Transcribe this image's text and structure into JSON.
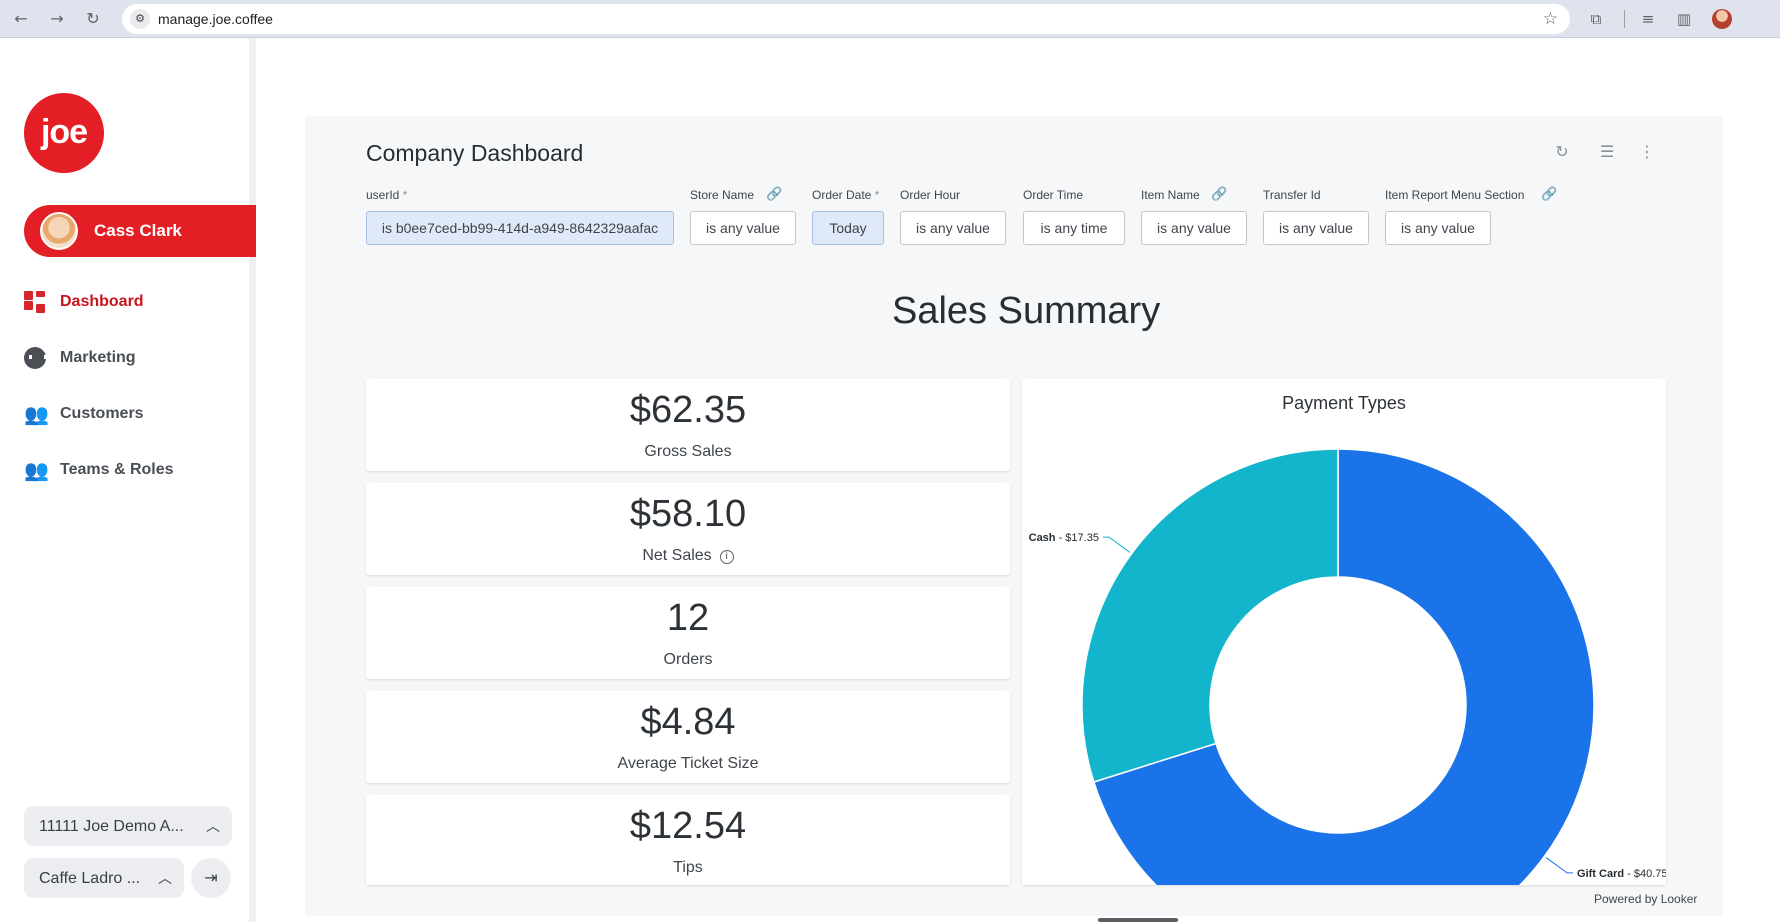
{
  "browser": {
    "url": "manage.joe.coffee",
    "back_glyph": "←",
    "forward_glyph": "→",
    "reload_glyph": "↻",
    "star_glyph": "☆"
  },
  "sidebar": {
    "logo_text": "joe",
    "user_name": "Cass Clark",
    "items": [
      {
        "label": "Dashboard",
        "icon": "dashboard-grid-icon",
        "active": true
      },
      {
        "label": "Marketing",
        "icon": "marketing-icon",
        "active": false
      },
      {
        "label": "Customers",
        "icon": "customers-icon",
        "active": false
      },
      {
        "label": "Teams & Roles",
        "icon": "teams-icon",
        "active": false
      }
    ],
    "company_select": "11111 Joe Demo A...",
    "store_select": "Caffe Ladro ..."
  },
  "dashboard": {
    "title": "Company Dashboard",
    "filters": [
      {
        "label": "userId",
        "required": "*",
        "value": "is b0ee7ced-bb99-414d-a949-8642329aafac",
        "highlight": true,
        "link": false
      },
      {
        "label": "Store Name",
        "required": "",
        "value": "is any value",
        "highlight": false,
        "link": true
      },
      {
        "label": "Order Date",
        "required": "*",
        "value": "Today",
        "highlight": true,
        "link": false
      },
      {
        "label": "Order Hour",
        "required": "",
        "value": "is any value",
        "highlight": false,
        "link": false
      },
      {
        "label": "Order Time",
        "required": "",
        "value": "is any time",
        "highlight": false,
        "link": false
      },
      {
        "label": "Item Name",
        "required": "",
        "value": "is any value",
        "highlight": false,
        "link": true
      },
      {
        "label": "Transfer Id",
        "required": "",
        "value": "is any value",
        "highlight": false,
        "link": false
      },
      {
        "label": "Item Report Menu Section",
        "required": "",
        "value": "is any value",
        "highlight": false,
        "link": true
      }
    ],
    "section_title": "Sales Summary",
    "kpis": [
      {
        "value": "$62.35",
        "label": "Gross Sales",
        "info": false
      },
      {
        "value": "$58.10",
        "label": "Net Sales",
        "info": true
      },
      {
        "value": "12",
        "label": "Orders",
        "info": false
      },
      {
        "value": "$4.84",
        "label": "Average Ticket Size",
        "info": false
      },
      {
        "value": "$12.54",
        "label": "Tips",
        "info": false
      }
    ],
    "powered_by": "Powered by ",
    "powered_brand": "Looker"
  },
  "chart_data": {
    "type": "pie",
    "title": "Payment Types",
    "donut": true,
    "slices": [
      {
        "name": "Gift Card",
        "value": 40.75,
        "label": "$40.75",
        "color": "#1a73e8"
      },
      {
        "name": "Cash",
        "value": 17.35,
        "label": "$17.35",
        "color": "#12b5cb"
      }
    ]
  }
}
